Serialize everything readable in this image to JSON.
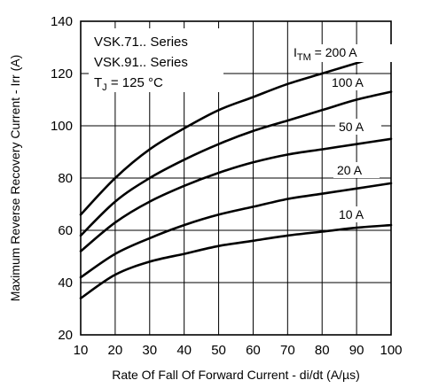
{
  "chart_data": {
    "type": "line",
    "xlabel": "Rate Of Fall Of Forward Current - di/dt (A/µs)",
    "ylabel": "Maximum Reverse Recovery Current - Irr (A)",
    "xlim": [
      10,
      100
    ],
    "ylim": [
      20,
      140
    ],
    "xticks": [
      10,
      20,
      30,
      40,
      50,
      60,
      70,
      80,
      90,
      100
    ],
    "yticks": [
      20,
      40,
      60,
      80,
      100,
      120,
      140
    ],
    "grid": true,
    "notes": {
      "line1": "VSK.71.. Series",
      "line2": "VSK.91.. Series",
      "tj_symbol": "T",
      "tj_sub": "J",
      "tj_value": " = 125 °C"
    },
    "itm_prefix": "I",
    "itm_sub": "TM",
    "x": [
      10,
      20,
      30,
      40,
      50,
      60,
      70,
      80,
      90,
      100
    ],
    "series": [
      {
        "name": "200 A",
        "values": [
          66,
          80,
          91,
          99,
          106,
          111,
          116,
          120,
          124,
          128
        ]
      },
      {
        "name": "100 A",
        "values": [
          58,
          71,
          80,
          87,
          93,
          98,
          102,
          106,
          110,
          113
        ]
      },
      {
        "name": "50 A",
        "values": [
          52,
          63,
          71,
          77,
          82,
          86,
          89,
          91,
          93,
          95
        ]
      },
      {
        "name": "20 A",
        "values": [
          42,
          51,
          57,
          62,
          66,
          69,
          72,
          74,
          76,
          78
        ]
      },
      {
        "name": "10 A",
        "values": [
          34,
          43,
          48,
          51,
          54,
          56,
          58,
          59.5,
          61,
          62
        ]
      }
    ]
  }
}
